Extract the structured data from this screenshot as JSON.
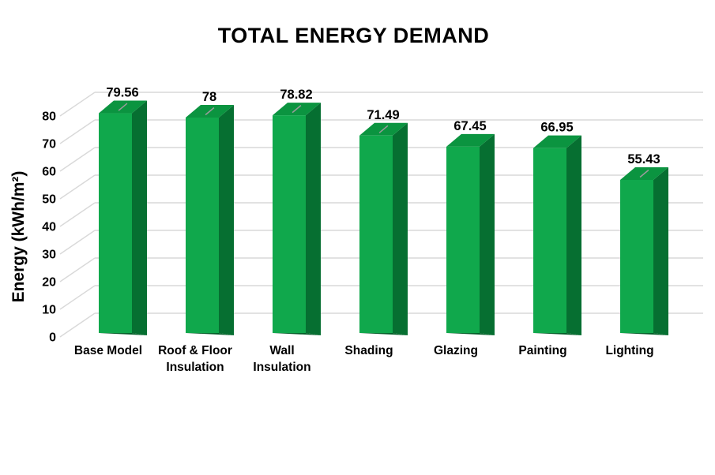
{
  "chart_data": {
    "type": "bar",
    "style": "3d-column",
    "title": "TOTAL ENERGY DEMAND",
    "xlabel": "",
    "ylabel": "Energy (kWh/m²)",
    "categories": [
      "Base Model",
      "Roof & Floor\nInsulation",
      "Wall\nInsulation",
      "Shading",
      "Glazing",
      "Painting",
      "Lighting"
    ],
    "values": [
      79.56,
      78,
      78.82,
      71.49,
      67.45,
      66.95,
      55.43
    ],
    "value_labels": [
      "79.56",
      "78",
      "78.82",
      "71.49",
      "67.45",
      "66.95",
      "55.43"
    ],
    "yticks": [
      "0",
      "10",
      "20",
      "30",
      "40",
      "50",
      "60",
      "70",
      "80"
    ],
    "ylim": [
      0,
      80
    ],
    "grid": true,
    "legend": false,
    "top_tick_marks": [
      true,
      true,
      true,
      true,
      false,
      false,
      true
    ],
    "colors": {
      "bar_front": "#10A84C",
      "bar_top": "#0B9440",
      "bar_side": "#066F31",
      "bar_bottom": "#05602A",
      "gridline": "#D9D9D9",
      "top_mark": "#9B9B9B",
      "text": "#000000",
      "background": "#FFFFFF"
    }
  }
}
